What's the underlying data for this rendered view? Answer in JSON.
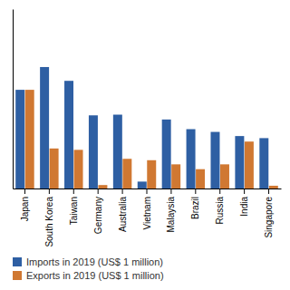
{
  "chart_data": {
    "type": "bar",
    "categories": [
      "Japan",
      "South Korea",
      "Taiwan",
      "Germany",
      "Australia",
      "Vietnam",
      "Malaysia",
      "Brazil",
      "Russia",
      "India",
      "Singapore"
    ],
    "series": [
      {
        "name": "Imports in 2019 (US$ 1 million)",
        "color": "#2e5fa3",
        "values": [
          143000,
          176000,
          156000,
          106000,
          107000,
          10000,
          100000,
          86000,
          82000,
          76000,
          73000
        ]
      },
      {
        "name": "Exports in 2019 (US$ 1 million)",
        "color": "#d07832",
        "values": [
          143000,
          58000,
          56000,
          5000,
          43000,
          41000,
          35000,
          28000,
          35000,
          68000,
          4000
        ]
      }
    ],
    "ylim": [
      0,
      260000
    ],
    "yticks": [],
    "grid": false,
    "tick_labels": "x"
  }
}
